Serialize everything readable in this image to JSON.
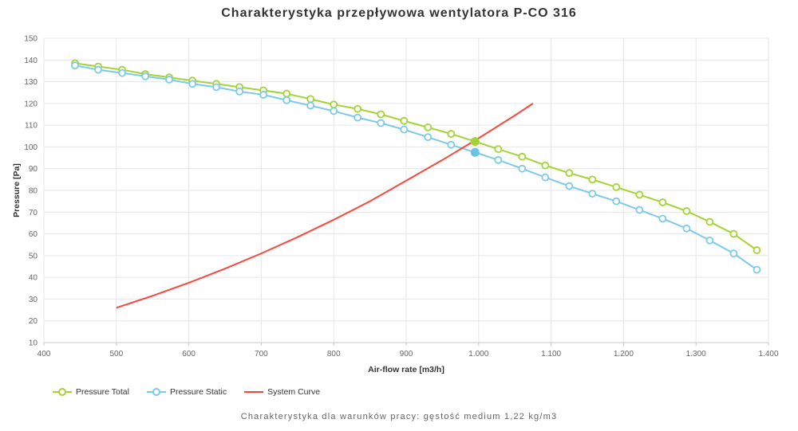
{
  "title": "Charakterystyka przepływowa wentylatora P-CO 316",
  "caption": "Charakterystyka dla warunków pracy: gęstość medium 1,22 kg/m3",
  "colors": {
    "pressure_total": "#a3d334",
    "pressure_static": "#7dc9ea",
    "pressure_static_fill": "#66c3e6",
    "system_curve": "#f8473d",
    "grid": "#e6e6e6",
    "axis_line": "#c8c8c8",
    "tick_text": "#666666",
    "title_text": "#333333"
  },
  "legend": {
    "items": [
      {
        "label": "Pressure Total",
        "color": "#a3d334",
        "marker": "line-circle"
      },
      {
        "label": "Pressure Static",
        "color": "#7dc9ea",
        "marker": "line-circle"
      },
      {
        "label": "System Curve",
        "color": "#f8473d",
        "marker": "line"
      }
    ]
  },
  "chart_data": {
    "type": "line",
    "title": "Charakterystyka przepływowa wentylatora P-CO 316",
    "xlabel": "Air-flow rate [m3/h]",
    "ylabel": "Pressure [Pa]",
    "xlim": [
      400,
      1400
    ],
    "ylim": [
      10,
      150
    ],
    "grid": true,
    "legend_position": "bottom-left",
    "x_ticks": [
      {
        "value": 400,
        "label": "400"
      },
      {
        "value": 500,
        "label": "500"
      },
      {
        "value": 600,
        "label": "600"
      },
      {
        "value": 700,
        "label": "700"
      },
      {
        "value": 800,
        "label": "800"
      },
      {
        "value": 900,
        "label": "900"
      },
      {
        "value": 1000,
        "label": "1.000"
      },
      {
        "value": 1100,
        "label": "1.100"
      },
      {
        "value": 1200,
        "label": "1.200"
      },
      {
        "value": 1300,
        "label": "1.300"
      },
      {
        "value": 1400,
        "label": "1.400"
      }
    ],
    "y_ticks": [
      10,
      20,
      30,
      40,
      50,
      60,
      70,
      80,
      90,
      100,
      110,
      120,
      130,
      140,
      150
    ],
    "x": [
      443,
      475,
      508,
      540,
      573,
      605,
      638,
      670,
      703,
      735,
      768,
      800,
      833,
      865,
      897,
      930,
      962,
      995,
      1027,
      1060,
      1092,
      1125,
      1157,
      1190,
      1222,
      1254,
      1287,
      1319,
      1352,
      1384
    ],
    "series": [
      {
        "name": "Pressure Total",
        "color": "#a3d334",
        "marker": "open-circle",
        "values": [
          138.5,
          137,
          135.5,
          133.5,
          132,
          130.5,
          129,
          127.5,
          126,
          124.5,
          122,
          119.5,
          117.5,
          115,
          112,
          109,
          106,
          102.5,
          99,
          95.5,
          91.5,
          88,
          85,
          81.5,
          78,
          74.5,
          70.5,
          65.5,
          60,
          52.5
        ]
      },
      {
        "name": "Pressure Static",
        "color": "#7dc9ea",
        "marker": "open-circle",
        "values": [
          137.5,
          135.5,
          134,
          132.5,
          131,
          129,
          127.5,
          125.5,
          124,
          121.5,
          119,
          116.5,
          113.5,
          111,
          108,
          104.5,
          101,
          97.5,
          94,
          90,
          86,
          82,
          78.5,
          75,
          71,
          67,
          62.5,
          57,
          51,
          43.5
        ]
      },
      {
        "name": "System Curve",
        "color": "#f8473d",
        "marker": "none",
        "x": [
          500,
          550,
          600,
          650,
          700,
          750,
          800,
          850,
          900,
          950,
          1000,
          1050,
          1075
        ],
        "values": [
          26,
          31.5,
          37.5,
          44,
          51,
          58.5,
          66.5,
          75,
          84.5,
          94,
          104,
          114.5,
          120
        ]
      }
    ],
    "operating_point": {
      "x": 995,
      "pressure_total": 102.5,
      "pressure_static": 97.5
    }
  }
}
